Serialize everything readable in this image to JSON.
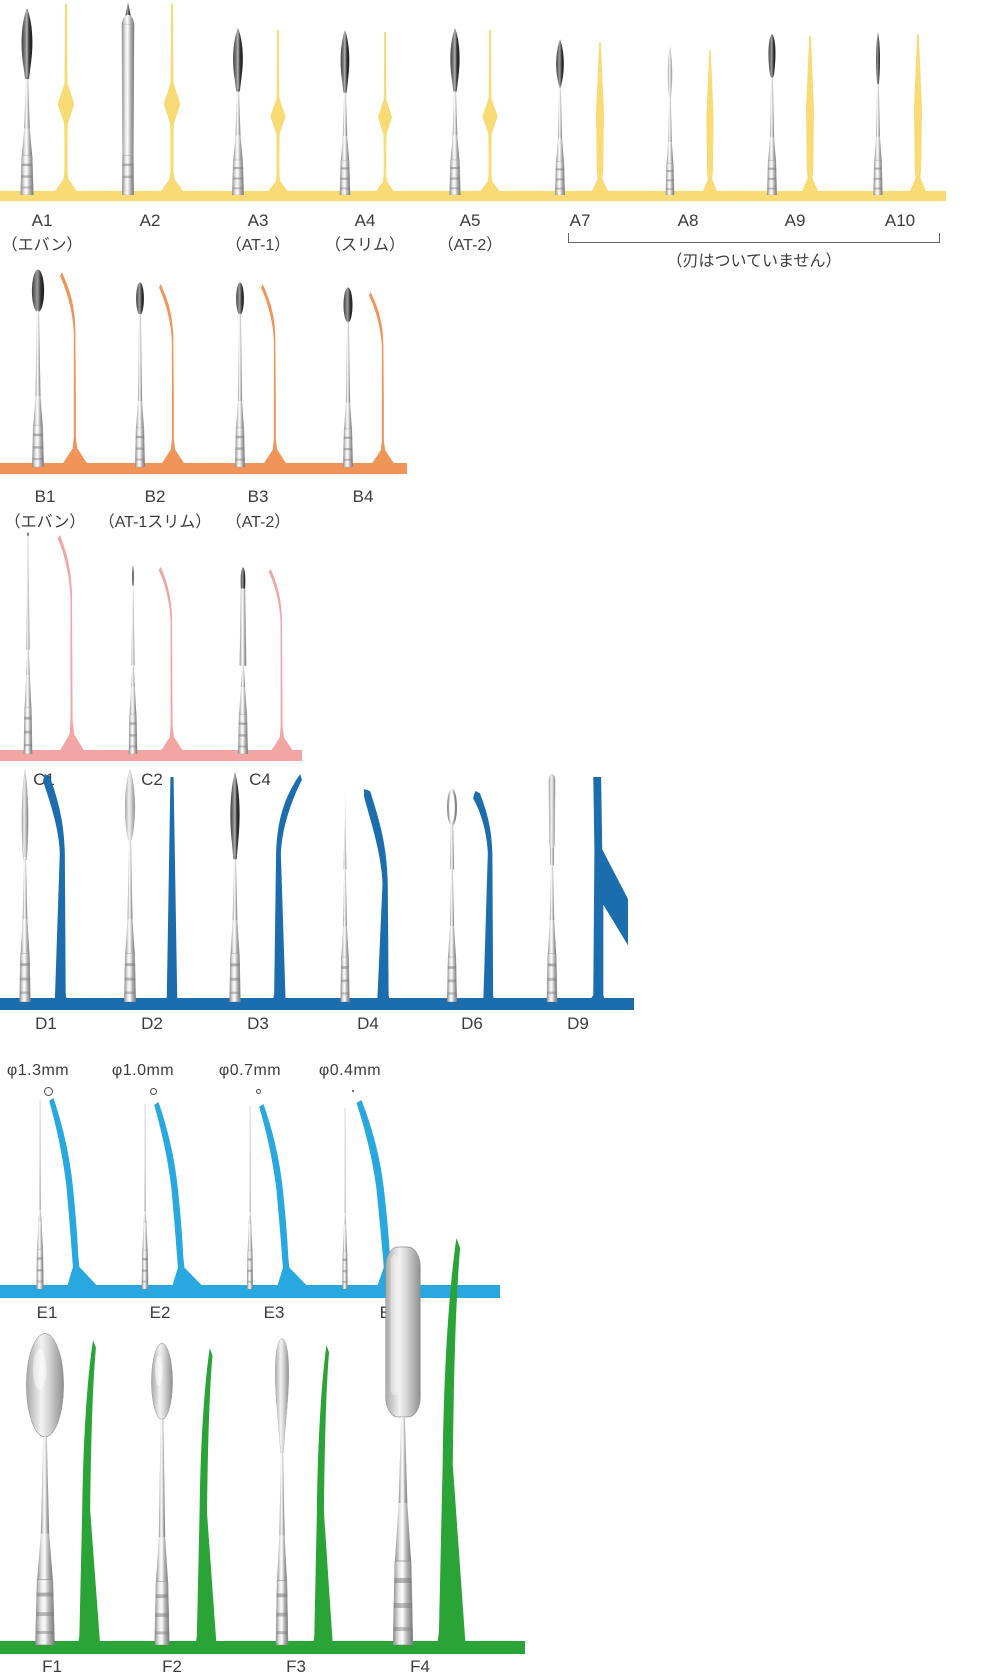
{
  "groups": [
    {
      "name": "A",
      "color": "#F8DB74",
      "bracket_note": "（刃はついていません）",
      "items": [
        {
          "label": "A1",
          "sublabel": "（エバン）"
        },
        {
          "label": "A2"
        },
        {
          "label": "A3",
          "sublabel": "（AT-1）"
        },
        {
          "label": "A4",
          "sublabel": "（スリム）"
        },
        {
          "label": "A5",
          "sublabel": "（AT-2）"
        },
        {
          "label": "A7"
        },
        {
          "label": "A8"
        },
        {
          "label": "A9"
        },
        {
          "label": "A10"
        }
      ]
    },
    {
      "name": "B",
      "color": "#F0945A",
      "items": [
        {
          "label": "B1",
          "sublabel": "（エバン）"
        },
        {
          "label": "B2",
          "sublabel": "（AT-1スリム）"
        },
        {
          "label": "B3",
          "sublabel": "（AT-2）"
        },
        {
          "label": "B4"
        }
      ]
    },
    {
      "name": "C",
      "color": "#F3A5A4",
      "items": [
        {
          "label": "C1"
        },
        {
          "label": "C2"
        },
        {
          "label": "C4"
        }
      ]
    },
    {
      "name": "D",
      "color": "#1C6DAD",
      "items": [
        {
          "label": "D1"
        },
        {
          "label": "D2"
        },
        {
          "label": "D3"
        },
        {
          "label": "D4"
        },
        {
          "label": "D6"
        },
        {
          "label": "D9"
        }
      ]
    },
    {
      "name": "E",
      "color": "#29A8E0",
      "items": [
        {
          "label": "E1",
          "diameter": "φ1.3mm"
        },
        {
          "label": "E2",
          "diameter": "φ1.0mm"
        },
        {
          "label": "E3",
          "diameter": "φ0.7mm"
        },
        {
          "label": "E4",
          "diameter": "φ0.4mm"
        }
      ]
    },
    {
      "name": "F",
      "color": "#2BA437",
      "items": [
        {
          "label": "F1"
        },
        {
          "label": "F2"
        },
        {
          "label": "F3"
        },
        {
          "label": "F4"
        }
      ]
    }
  ]
}
